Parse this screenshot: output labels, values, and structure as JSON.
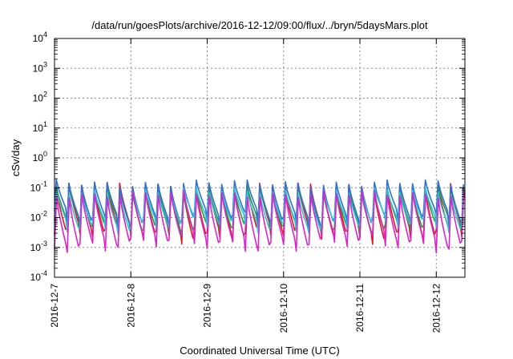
{
  "chart_data": {
    "type": "line",
    "title": "/data/run/goesPlots/archive/2016-12-12/09:00/flux/../bryn/5daysMars.plot",
    "xlabel": "Coordinated Universal Time (UTC)",
    "ylabel": "cSv/day",
    "xlim": [
      "2016-12-07",
      "2016-12-12 09:00"
    ],
    "ylim": [
      0.0001,
      10000
    ],
    "yscale": "log",
    "grid": true,
    "x_ticks": [
      "2016-12-7",
      "2016-12-8",
      "2016-12-9",
      "2016-12-10",
      "2016-12-11",
      "2016-12-12"
    ],
    "y_ticks": [
      {
        "base": "10",
        "exp": "4"
      },
      {
        "base": "10",
        "exp": "3"
      },
      {
        "base": "10",
        "exp": "2"
      },
      {
        "base": "10",
        "exp": "1"
      },
      {
        "base": "10",
        "exp": "0"
      },
      {
        "base": "10",
        "exp": "-1"
      },
      {
        "base": "10",
        "exp": "-2"
      },
      {
        "base": "10",
        "exp": "-3"
      },
      {
        "base": "10",
        "exp": "-4"
      }
    ],
    "cycle_hours": 4,
    "series": [
      {
        "color": "#e8141e",
        "peak": 0.11,
        "trough": 0.0026
      },
      {
        "color": "#2a9a3a",
        "peak": 0.09,
        "trough": 0.0045
      },
      {
        "color": "#2f6fd6",
        "peak": 0.14,
        "trough": 0.008
      },
      {
        "color": "#27c4d8",
        "peak": 0.075,
        "trough": 0.0055
      },
      {
        "color": "#dd22cc",
        "peak": 0.06,
        "trough": 0.0013
      }
    ]
  }
}
